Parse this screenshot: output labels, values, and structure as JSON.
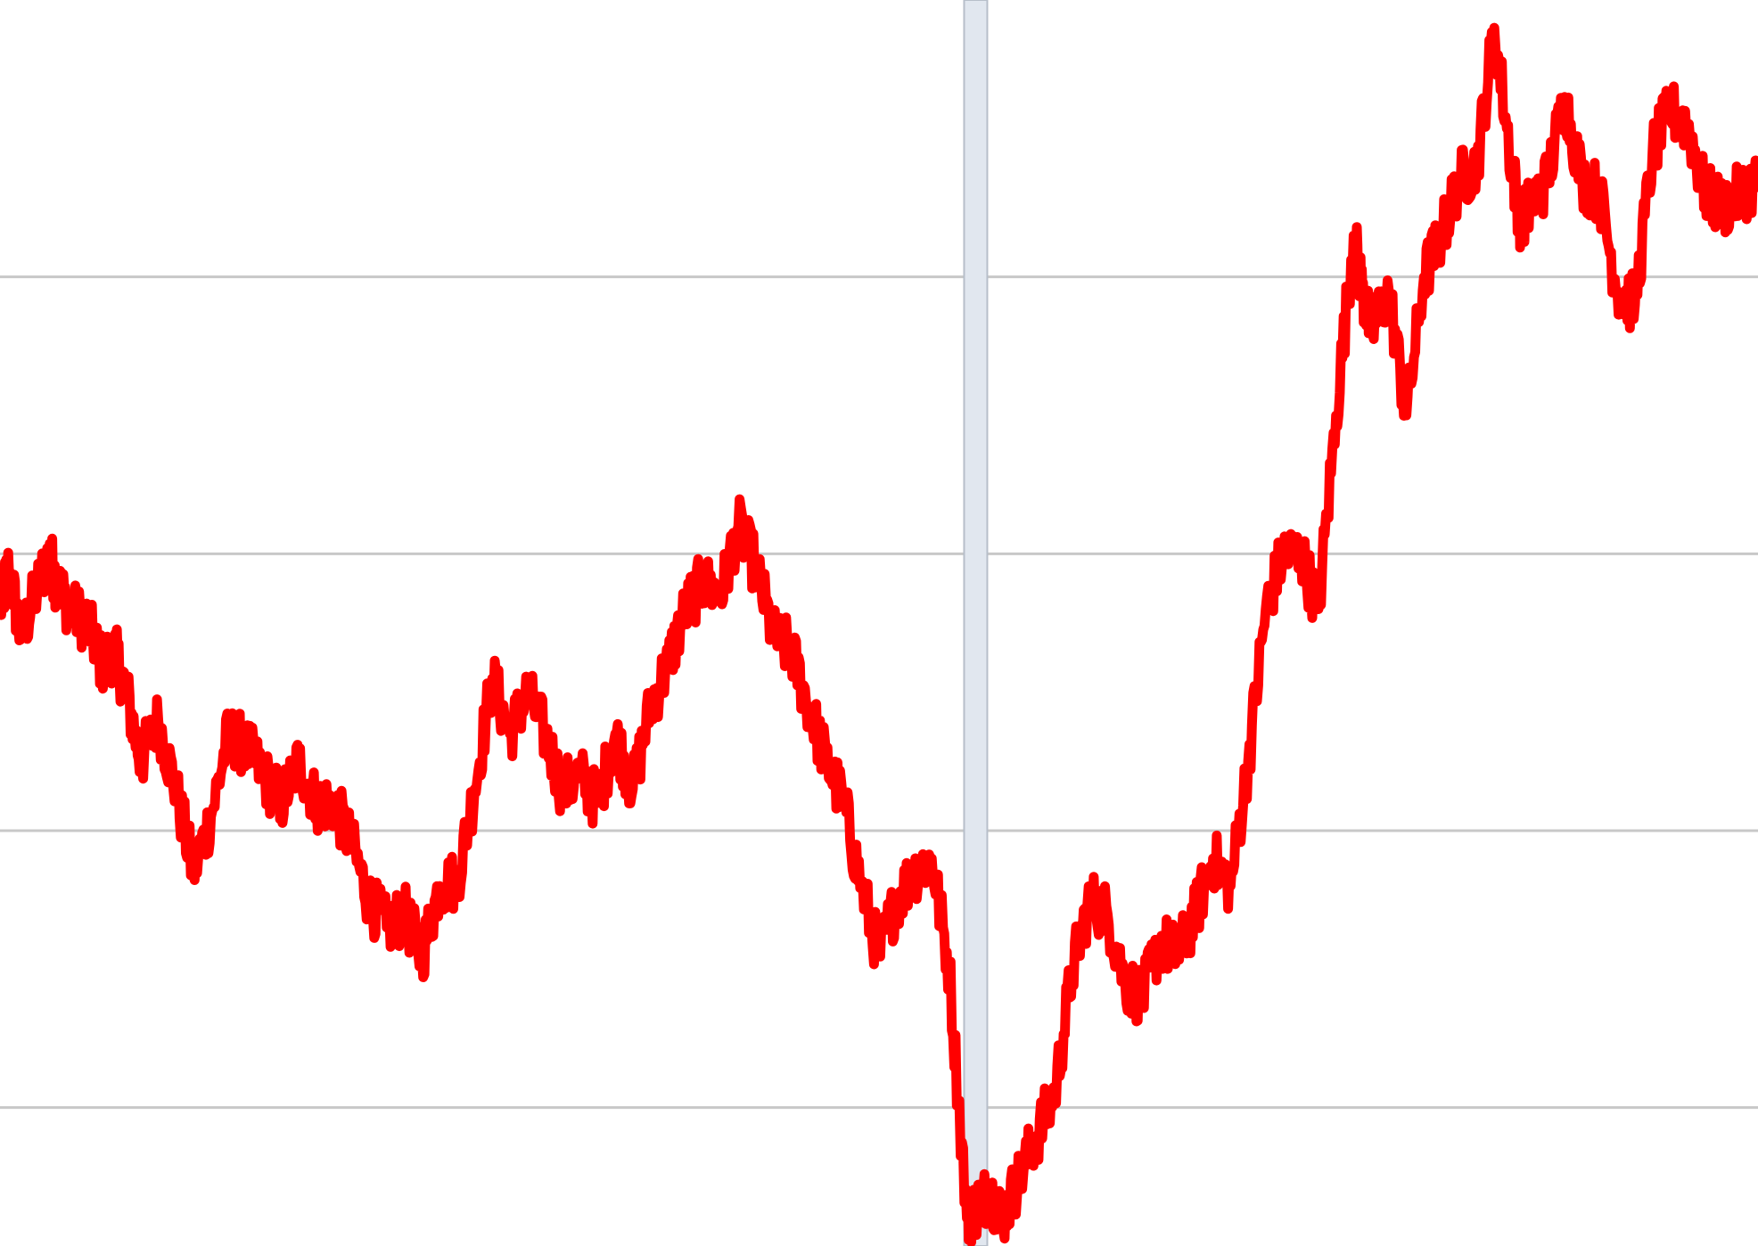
{
  "chart_data": {
    "type": "line",
    "title": "",
    "xlabel": "",
    "ylabel": "",
    "grid": true,
    "legend": "none",
    "x_axis_ticks_visible": false,
    "y_axis_ticks_visible": false,
    "xlim": [
      0,
      100
    ],
    "ylim": [
      0,
      4.5
    ],
    "gridlines_y": [
      0.5,
      1.5,
      2.5,
      3.5
    ],
    "divider_x": 55.5,
    "colors": {
      "line": "#ff0000",
      "gridline": "#c8c8c8",
      "divider": "#e1e7ef",
      "background": "#ffffff"
    },
    "series": [
      {
        "x": [
          0,
          0.5,
          1.2,
          2,
          2.8,
          3.2,
          4,
          5,
          5.8,
          6.5,
          7.2,
          8,
          9,
          10,
          11,
          12,
          13,
          14,
          15,
          16,
          17,
          18,
          19,
          20,
          21,
          22,
          23,
          24,
          25,
          26,
          27,
          28,
          29,
          30,
          31,
          32,
          33,
          34,
          35,
          36,
          37,
          38,
          39,
          40,
          41,
          42,
          43,
          44,
          45,
          46,
          47,
          48,
          49,
          50,
          51,
          52,
          53,
          54,
          55,
          55.7,
          56.3,
          57,
          58,
          59,
          60,
          61,
          62,
          63,
          64,
          65,
          66,
          67,
          68,
          69,
          70,
          71,
          72,
          73,
          74,
          75,
          76,
          77,
          77.5,
          78,
          79,
          80,
          81,
          82,
          83,
          84,
          85,
          86,
          86.5,
          87,
          88,
          89,
          90,
          91,
          92,
          93,
          94,
          95,
          96,
          97,
          98,
          99,
          100
        ],
        "y": [
          2.3,
          2.45,
          2.2,
          2.35,
          2.5,
          2.4,
          2.3,
          2.25,
          2.1,
          2.15,
          2.0,
          1.75,
          1.9,
          1.65,
          1.35,
          1.55,
          1.85,
          1.8,
          1.7,
          1.6,
          1.75,
          1.6,
          1.6,
          1.45,
          1.25,
          1.15,
          1.2,
          1.05,
          1.3,
          1.32,
          1.65,
          2.05,
          1.85,
          2.0,
          1.85,
          1.65,
          1.7,
          1.6,
          1.85,
          1.65,
          1.95,
          2.1,
          2.3,
          2.4,
          2.35,
          2.6,
          2.45,
          2.2,
          2.15,
          1.95,
          1.75,
          1.6,
          1.3,
          1.05,
          1.25,
          1.35,
          1.4,
          1.0,
          0.1,
          0.15,
          0.2,
          0.1,
          0.25,
          0.4,
          0.55,
          1.0,
          1.25,
          1.2,
          0.95,
          0.9,
          1.1,
          1.05,
          1.2,
          1.4,
          1.3,
          1.75,
          2.3,
          2.5,
          2.5,
          2.3,
          3.0,
          3.65,
          3.45,
          3.3,
          3.45,
          3.0,
          3.5,
          3.65,
          3.85,
          3.9,
          4.4,
          3.9,
          3.7,
          3.75,
          3.85,
          4.15,
          3.85,
          3.8,
          3.45,
          3.4,
          3.95,
          4.1,
          4.05,
          3.8,
          3.75,
          3.8,
          3.85
        ]
      }
    ]
  }
}
